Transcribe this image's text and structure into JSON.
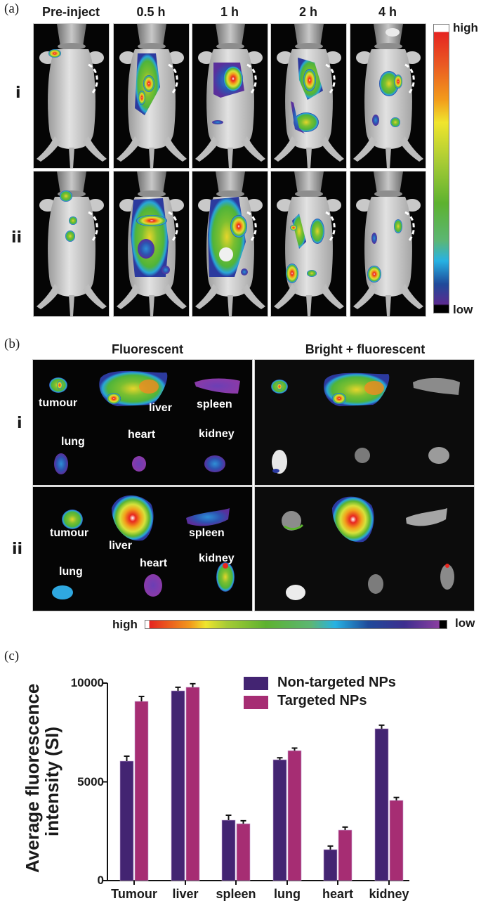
{
  "panel_a": {
    "label": "(a)",
    "columns": [
      "Pre-inject",
      "0.5 h",
      "1 h",
      "2 h",
      "4 h"
    ],
    "rows": [
      "i",
      "ii"
    ],
    "colorbar": {
      "high": "high",
      "low": "low"
    }
  },
  "panel_b": {
    "label": "(b)",
    "headings": [
      "Fluorescent",
      "Bright + fluorescent"
    ],
    "rows": [
      "i",
      "ii"
    ],
    "organs": [
      "tumour",
      "liver",
      "spleen",
      "lung",
      "heart",
      "kidney"
    ],
    "colorbar": {
      "high": "high",
      "low": "low"
    }
  },
  "panel_c": {
    "label": "(c)"
  },
  "colors": {
    "non_targeted": "#432472",
    "targeted": "#A62D73"
  },
  "chart_data": {
    "type": "bar",
    "title": "",
    "xlabel": "",
    "ylabel": "Average fluorescence intensity (SI)",
    "ylabel_lines": [
      "Average fluorescence",
      "intensity (SI)"
    ],
    "categories": [
      "Tumour",
      "liver",
      "spleen",
      "lung",
      "heart",
      "kidney"
    ],
    "series": [
      {
        "name": "Non-targeted NPs",
        "values": [
          6050,
          9610,
          3060,
          6120,
          1570,
          7690
        ],
        "errors": [
          250,
          180,
          250,
          100,
          180,
          180
        ]
      },
      {
        "name": "Targeted NPs",
        "values": [
          9075,
          9790,
          2880,
          6580,
          2560,
          4060
        ],
        "errors": [
          250,
          180,
          150,
          130,
          150,
          150
        ]
      }
    ],
    "yticks": [
      "0",
      "5000",
      "10000"
    ],
    "ylim": [
      0,
      10000
    ],
    "grid": false,
    "legend_position": "top-right",
    "error_bars": true
  }
}
